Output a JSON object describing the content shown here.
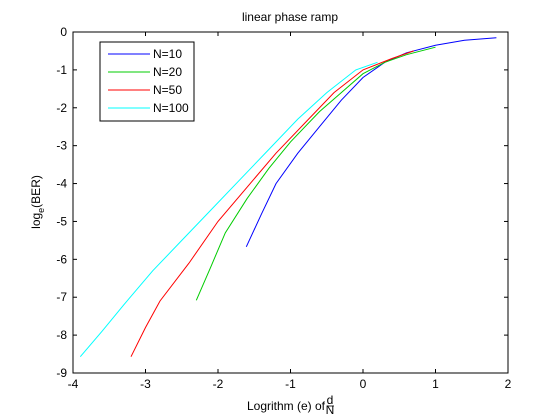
{
  "chart_data": {
    "type": "line",
    "title": "linear phase ramp",
    "xlabel": "Logrithm (e) of d/N",
    "ylabel": "log_e(BER)",
    "xlabel_parts": {
      "prefix": "Logrithm (e) of ",
      "frac_num": "d",
      "frac_den": "N"
    },
    "ylabel_parts": {
      "prefix": "log",
      "sub": "e",
      "suffix": "(BER)"
    },
    "xlim": [
      -4,
      2
    ],
    "ylim": [
      -9,
      0
    ],
    "x_ticks": [
      -4,
      -3,
      -2,
      -1,
      0,
      1,
      2
    ],
    "y_ticks": [
      0,
      -1,
      -2,
      -3,
      -4,
      -5,
      -6,
      -7,
      -8,
      -9
    ],
    "x_tick_labels": [
      "-4",
      "-3",
      "-2",
      "-1",
      "0",
      "1",
      "2"
    ],
    "y_tick_labels": [
      "0",
      "-1",
      "-2",
      "-3",
      "-4",
      "-5",
      "-6",
      "-7",
      "-8",
      "-9"
    ],
    "grid": false,
    "legend_position": "top-left",
    "series": [
      {
        "name": "N=10",
        "color": "#0000ff",
        "points": [
          [
            -1.61,
            -5.67
          ],
          [
            -1.4,
            -4.8
          ],
          [
            -1.2,
            -4.0
          ],
          [
            -0.9,
            -3.2
          ],
          [
            -0.6,
            -2.5
          ],
          [
            -0.3,
            -1.8
          ],
          [
            0,
            -1.2
          ],
          [
            0.3,
            -0.8
          ],
          [
            0.6,
            -0.55
          ],
          [
            1.0,
            -0.35
          ],
          [
            1.4,
            -0.22
          ],
          [
            1.84,
            -0.15
          ]
        ]
      },
      {
        "name": "N=20",
        "color": "#00cc00",
        "points": [
          [
            -2.3,
            -7.08
          ],
          [
            -2.1,
            -6.2
          ],
          [
            -1.9,
            -5.3
          ],
          [
            -1.6,
            -4.4
          ],
          [
            -1.3,
            -3.6
          ],
          [
            -1.0,
            -2.9
          ],
          [
            -0.6,
            -2.1
          ],
          [
            -0.3,
            -1.6
          ],
          [
            0,
            -1.1
          ],
          [
            0.3,
            -0.8
          ],
          [
            0.6,
            -0.6
          ],
          [
            1.0,
            -0.4
          ]
        ]
      },
      {
        "name": "N=50",
        "color": "#ff0000",
        "points": [
          [
            -3.2,
            -8.57
          ],
          [
            -3.0,
            -7.8
          ],
          [
            -2.8,
            -7.1
          ],
          [
            -2.4,
            -6.1
          ],
          [
            -2.0,
            -5.0
          ],
          [
            -1.6,
            -4.1
          ],
          [
            -1.2,
            -3.2
          ],
          [
            -0.8,
            -2.4
          ],
          [
            -0.4,
            -1.6
          ],
          [
            0,
            -1.0
          ],
          [
            0.4,
            -0.7
          ],
          [
            0.7,
            -0.5
          ]
        ]
      },
      {
        "name": "N=100",
        "color": "#00ffff",
        "points": [
          [
            -3.9,
            -8.57
          ],
          [
            -3.6,
            -7.9
          ],
          [
            -3.3,
            -7.2
          ],
          [
            -2.9,
            -6.3
          ],
          [
            -2.5,
            -5.5
          ],
          [
            -2.1,
            -4.7
          ],
          [
            -1.7,
            -3.9
          ],
          [
            -1.3,
            -3.1
          ],
          [
            -0.9,
            -2.3
          ],
          [
            -0.5,
            -1.6
          ],
          [
            -0.1,
            -1.0
          ],
          [
            0.2,
            -0.8
          ]
        ]
      }
    ]
  }
}
